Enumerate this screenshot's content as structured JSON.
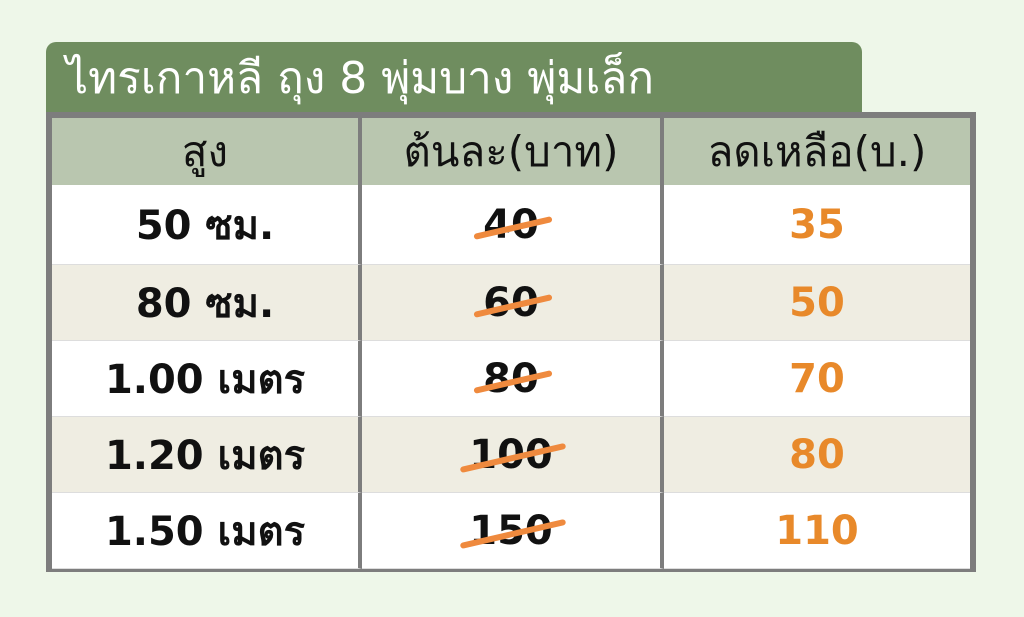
{
  "title": "ไทรเกาหลี ถุง 8 พุ่มบาง พุ่มเล็ก",
  "colors": {
    "title_bg": "#6f8d5f",
    "header_bg": "#b9c6af",
    "new_price": "#e8892a",
    "strike": "#ef8a3e"
  },
  "headers": [
    "สูง",
    "ต้นละ(บาท)",
    "ลดเหลือ(บ.)"
  ],
  "rows": [
    {
      "height": "50 ซม.",
      "old_price": "40",
      "new_price": "35"
    },
    {
      "height": "80 ซม.",
      "old_price": "60",
      "new_price": "50"
    },
    {
      "height": "1.00 เมตร",
      "old_price": "80",
      "new_price": "70"
    },
    {
      "height": "1.20 เมตร",
      "old_price": "100",
      "new_price": "80"
    },
    {
      "height": "1.50 เมตร",
      "old_price": "150",
      "new_price": "110"
    }
  ]
}
